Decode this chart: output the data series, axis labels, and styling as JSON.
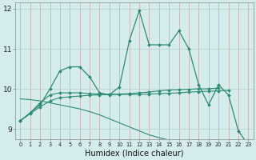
{
  "xlabel": "Humidex (Indice chaleur)",
  "x": [
    0,
    1,
    2,
    3,
    4,
    5,
    6,
    7,
    8,
    9,
    10,
    11,
    12,
    13,
    14,
    15,
    16,
    17,
    18,
    19,
    20,
    21,
    22,
    23
  ],
  "line1": [
    9.2,
    9.4,
    9.6,
    10.0,
    10.45,
    10.55,
    10.55,
    10.3,
    9.9,
    9.85,
    10.05,
    11.2,
    11.95,
    11.1,
    11.1,
    11.1,
    11.45,
    11.0,
    10.1,
    9.6,
    10.1,
    9.85,
    8.95,
    8.6
  ],
  "line2": [
    9.2,
    9.4,
    9.65,
    9.85,
    9.9,
    9.9,
    9.9,
    9.88,
    9.87,
    9.86,
    9.86,
    9.86,
    9.86,
    9.87,
    9.88,
    9.89,
    9.9,
    9.92,
    9.93,
    9.94,
    9.95,
    9.96,
    null,
    null
  ],
  "line3": [
    9.2,
    9.38,
    9.55,
    9.7,
    9.78,
    9.8,
    9.82,
    9.84,
    9.85,
    9.86,
    9.87,
    9.88,
    9.9,
    9.92,
    9.95,
    9.97,
    9.98,
    9.99,
    10.0,
    10.0,
    10.02,
    null,
    null,
    null
  ],
  "line4": [
    9.75,
    9.73,
    9.7,
    9.65,
    9.6,
    9.55,
    9.5,
    9.43,
    9.35,
    9.25,
    9.15,
    9.05,
    8.95,
    8.85,
    8.78,
    8.72,
    8.68,
    8.65,
    8.62,
    8.6,
    8.58,
    null,
    null,
    null
  ],
  "ylim": [
    8.75,
    12.15
  ],
  "yticks": [
    9,
    10,
    11,
    12
  ],
  "xlim": [
    -0.5,
    23.5
  ],
  "line_color": "#2d8b72",
  "bg_color": "#d4ecec",
  "grid_color_v": "#c8a8a8",
  "grid_color_h": "#b8d4d4"
}
